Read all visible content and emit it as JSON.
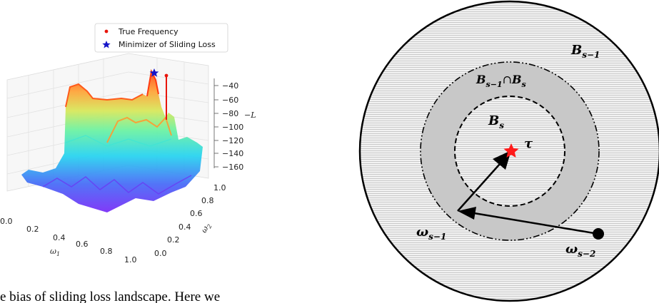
{
  "left_plot": {
    "legend": {
      "true_frequency": "True Frequency",
      "minimizer": "Minimizer of Sliding Loss"
    },
    "z_ticks": [
      "−40",
      "−60",
      "−80",
      "−100",
      "−120",
      "−140",
      "−160"
    ],
    "z_label": "−L",
    "x_ticks": [
      "0.0",
      "0.2",
      "0.4",
      "0.6",
      "0.8",
      "1.0"
    ],
    "x_label": "ω1",
    "y_ticks": [
      "0.0",
      "0.2",
      "0.4",
      "0.6",
      "0.8",
      "1.0"
    ],
    "y_label": "ω2",
    "colors": {
      "true_frequency": "#e8150c",
      "minimizer": "#1515c8"
    }
  },
  "caption_fragment": "e bias of sliding loss landscape.  Here we",
  "right_diagram": {
    "outer_label": "B",
    "outer_sub": "s−1",
    "intersect_a": "B",
    "intersect_a_sub": "s−1",
    "intersect_op": "∩",
    "intersect_b": "B",
    "intersect_b_sub": "s",
    "inner_label": "B",
    "inner_sub": "s",
    "tau_label": "τ",
    "omega_prev": "ω",
    "omega_prev_sub": "s−1",
    "omega_prev2": "ω",
    "omega_prev2_sub": "s−2",
    "colors": {
      "star": "#ff1a1a",
      "shade": "#c8c8c8"
    }
  }
}
